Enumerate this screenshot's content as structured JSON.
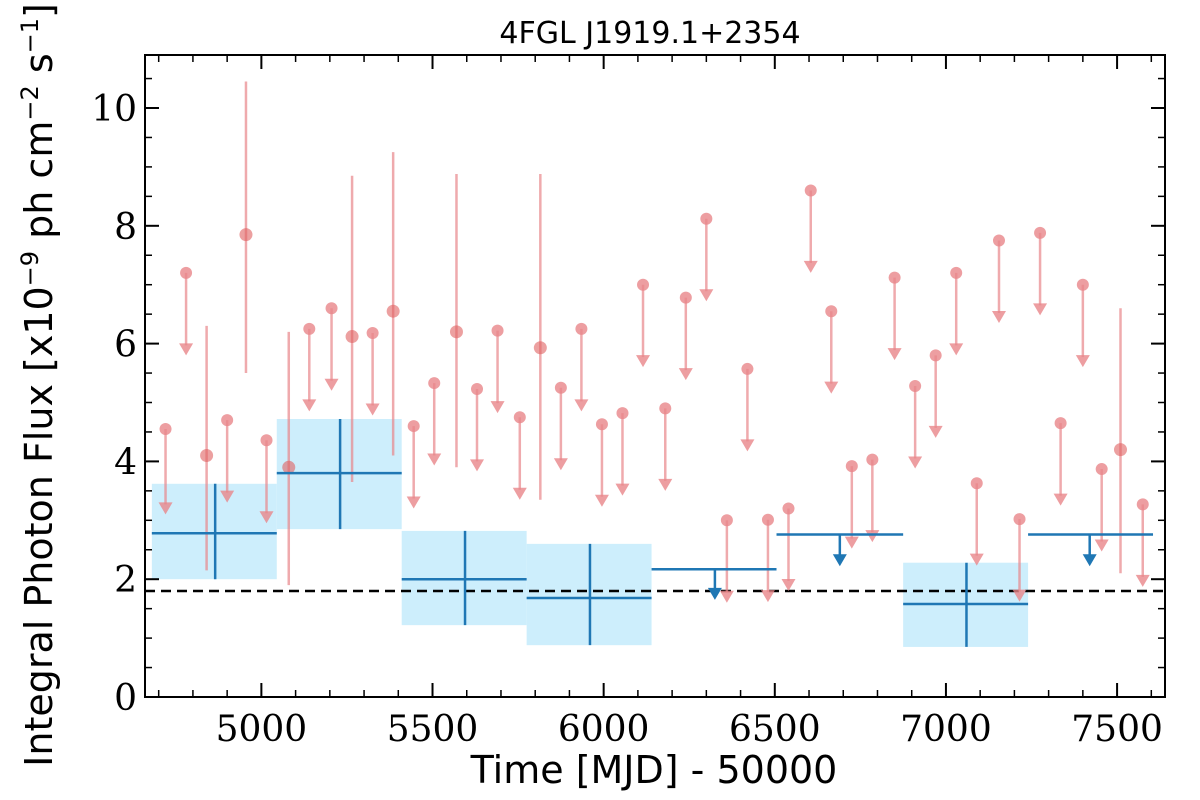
{
  "chart_data": {
    "type": "scatter",
    "title": "4FGL J1919.1+2354",
    "xlabel": "Time [MJD] - 50000",
    "ylabel": {
      "prefix": "Integral Photon Flux [x10",
      "exp1": "−9",
      "middle": " ph cm",
      "exp2": "−2",
      "middle2": " s",
      "exp3": "−1",
      "suffix": "]"
    },
    "xlim": [
      4660,
      7640
    ],
    "ylim": [
      0,
      10.9
    ],
    "xticks": [
      5000,
      5500,
      6000,
      6500,
      7000,
      7500
    ],
    "yticks": [
      0,
      2,
      4,
      6,
      8,
      10
    ],
    "grid": false,
    "reference_level": 1.8,
    "colors": {
      "short_bins": "#e8868a",
      "long_bins": "#1f77b4",
      "long_band": "#cdeefc",
      "reference": "#000000"
    },
    "series": [
      {
        "role": "short-bin detections",
        "points": [
          {
            "x": 4840,
            "y": 4.1,
            "ylo": 2.15,
            "yhi": 6.3
          },
          {
            "x": 4955,
            "y": 7.85,
            "ylo": 5.5,
            "yhi": 10.45
          },
          {
            "x": 5080,
            "y": 3.9,
            "ylo": 1.9,
            "yhi": 6.2
          },
          {
            "x": 5265,
            "y": 6.12,
            "ylo": 3.65,
            "yhi": 8.85
          },
          {
            "x": 5385,
            "y": 6.55,
            "ylo": 4.1,
            "yhi": 9.25
          },
          {
            "x": 5570,
            "y": 6.2,
            "ylo": 3.9,
            "yhi": 8.88
          },
          {
            "x": 5815,
            "y": 5.93,
            "ylo": 3.35,
            "yhi": 8.88
          },
          {
            "x": 7510,
            "y": 4.2,
            "ylo": 2.1,
            "yhi": 6.6
          }
        ]
      },
      {
        "role": "short-bin upper limits",
        "points": [
          {
            "x": 4720,
            "y": 4.55,
            "to": 3.1
          },
          {
            "x": 4780,
            "y": 7.2,
            "to": 5.8
          },
          {
            "x": 4900,
            "y": 4.7,
            "to": 3.3
          },
          {
            "x": 5015,
            "y": 4.36,
            "to": 2.95
          },
          {
            "x": 5140,
            "y": 6.25,
            "to": 4.85
          },
          {
            "x": 5205,
            "y": 6.6,
            "to": 5.2
          },
          {
            "x": 5325,
            "y": 6.18,
            "to": 4.78
          },
          {
            "x": 5445,
            "y": 4.6,
            "to": 3.2
          },
          {
            "x": 5505,
            "y": 5.33,
            "to": 3.93
          },
          {
            "x": 5630,
            "y": 5.23,
            "to": 3.83
          },
          {
            "x": 5690,
            "y": 6.22,
            "to": 4.82
          },
          {
            "x": 5755,
            "y": 4.75,
            "to": 3.35
          },
          {
            "x": 5875,
            "y": 5.25,
            "to": 3.85
          },
          {
            "x": 5935,
            "y": 6.25,
            "to": 4.85
          },
          {
            "x": 5995,
            "y": 4.63,
            "to": 3.23
          },
          {
            "x": 6055,
            "y": 4.82,
            "to": 3.42
          },
          {
            "x": 6115,
            "y": 7.0,
            "to": 5.6
          },
          {
            "x": 6180,
            "y": 4.9,
            "to": 3.5
          },
          {
            "x": 6240,
            "y": 6.78,
            "to": 5.38
          },
          {
            "x": 6300,
            "y": 8.12,
            "to": 6.72
          },
          {
            "x": 6360,
            "y": 3.0,
            "to": 1.6
          },
          {
            "x": 6420,
            "y": 5.57,
            "to": 4.17
          },
          {
            "x": 6480,
            "y": 3.01,
            "to": 1.61
          },
          {
            "x": 6540,
            "y": 3.2,
            "to": 1.8
          },
          {
            "x": 6605,
            "y": 8.6,
            "to": 7.2
          },
          {
            "x": 6665,
            "y": 6.55,
            "to": 5.15
          },
          {
            "x": 6725,
            "y": 3.92,
            "to": 2.52
          },
          {
            "x": 6785,
            "y": 4.03,
            "to": 2.63
          },
          {
            "x": 6850,
            "y": 7.12,
            "to": 5.72
          },
          {
            "x": 6910,
            "y": 5.28,
            "to": 3.88
          },
          {
            "x": 6970,
            "y": 5.8,
            "to": 4.4
          },
          {
            "x": 7030,
            "y": 7.2,
            "to": 5.8
          },
          {
            "x": 7090,
            "y": 3.63,
            "to": 2.23
          },
          {
            "x": 7155,
            "y": 7.75,
            "to": 6.35
          },
          {
            "x": 7215,
            "y": 3.02,
            "to": 1.62
          },
          {
            "x": 7275,
            "y": 7.88,
            "to": 6.48
          },
          {
            "x": 7335,
            "y": 4.65,
            "to": 3.25
          },
          {
            "x": 7400,
            "y": 7.0,
            "to": 5.6
          },
          {
            "x": 7455,
            "y": 3.87,
            "to": 2.47
          },
          {
            "x": 7575,
            "y": 3.27,
            "to": 1.87
          }
        ]
      },
      {
        "role": "long-bin detections",
        "points": [
          {
            "x0": 4680,
            "x1": 5045,
            "xc": 4865,
            "y": 2.78,
            "ylo": 2.0,
            "yhi": 3.62
          },
          {
            "x0": 5045,
            "x1": 5410,
            "xc": 5230,
            "y": 3.8,
            "ylo": 2.85,
            "yhi": 4.72
          },
          {
            "x0": 5410,
            "x1": 5775,
            "xc": 5595,
            "y": 2.0,
            "ylo": 1.22,
            "yhi": 2.82
          },
          {
            "x0": 5775,
            "x1": 6140,
            "xc": 5960,
            "y": 1.68,
            "ylo": 0.88,
            "yhi": 2.6
          },
          {
            "x0": 6875,
            "x1": 7240,
            "xc": 7060,
            "y": 1.58,
            "ylo": 0.85,
            "yhi": 2.28
          }
        ]
      },
      {
        "role": "long-bin upper limits",
        "points": [
          {
            "x0": 6140,
            "x1": 6505,
            "xc": 6325,
            "y": 2.17,
            "to": 1.65
          },
          {
            "x0": 6505,
            "x1": 6875,
            "xc": 6690,
            "y": 2.76,
            "to": 2.22
          },
          {
            "x0": 7240,
            "x1": 7605,
            "xc": 7420,
            "y": 2.76,
            "to": 2.22
          }
        ]
      }
    ]
  }
}
